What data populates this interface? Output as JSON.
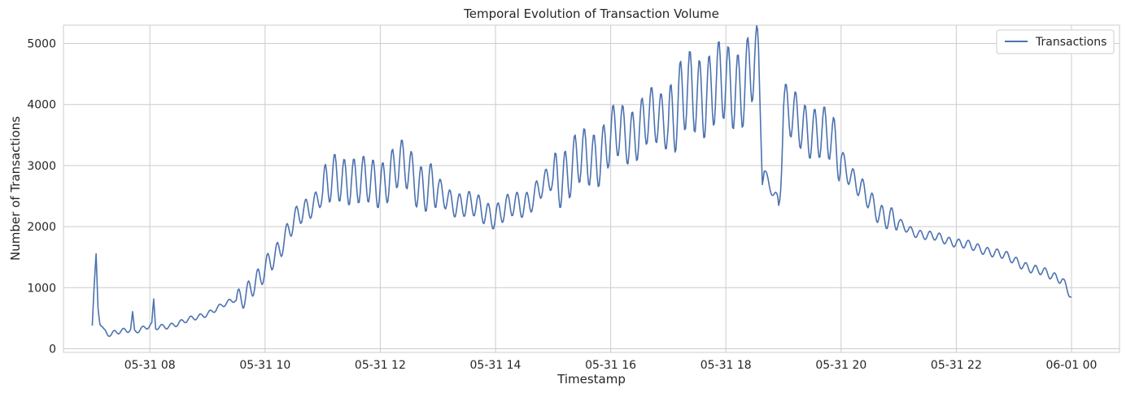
{
  "chart_data": {
    "type": "line",
    "title": "Temporal Evolution of Transaction Volume",
    "xlabel": "Timestamp",
    "ylabel": "Number of Transactions",
    "xlim": [
      "05-31 06:30",
      "06-01 00:50"
    ],
    "ylim": [
      -60,
      5300
    ],
    "grid": true,
    "legend_position": "top-right",
    "x_ticks": [
      "05-31 08",
      "05-31 10",
      "05-31 12",
      "05-31 14",
      "05-31 16",
      "05-31 18",
      "05-31 20",
      "05-31 22",
      "06-01 00"
    ],
    "y_ticks": [
      0,
      1000,
      2000,
      3000,
      4000,
      5000
    ],
    "series": [
      {
        "name": "Transactions",
        "color": "#4c72b0",
        "x": [
          "05-31 07:00",
          "05-31 07:02",
          "05-31 07:04",
          "05-31 07:06",
          "05-31 07:08",
          "05-31 07:12",
          "05-31 07:16",
          "05-31 07:20",
          "05-31 07:24",
          "05-31 07:30",
          "05-31 07:36",
          "05-31 07:40",
          "05-31 07:42",
          "05-31 07:44",
          "05-31 07:50",
          "05-31 07:56",
          "05-31 08:02",
          "05-31 08:04",
          "05-31 08:06",
          "05-31 08:10",
          "05-31 08:20",
          "05-31 08:30",
          "05-31 08:40",
          "05-31 08:50",
          "05-31 09:00",
          "05-31 09:10",
          "05-31 09:20",
          "05-31 09:30",
          "05-31 09:40",
          "05-31 09:50",
          "05-31 09:55",
          "05-31 10:00",
          "05-31 10:05",
          "05-31 10:10",
          "05-31 10:20",
          "05-31 10:30",
          "05-31 10:40",
          "05-31 10:50",
          "05-31 11:00",
          "05-31 11:10",
          "05-31 11:20",
          "05-31 11:30",
          "05-31 11:40",
          "05-31 11:50",
          "05-31 12:00",
          "05-31 12:10",
          "05-31 12:20",
          "05-31 12:30",
          "05-31 12:40",
          "05-31 12:50",
          "05-31 13:00",
          "05-31 13:10",
          "05-31 13:20",
          "05-31 13:30",
          "05-31 13:40",
          "05-31 13:50",
          "05-31 14:00",
          "05-31 14:10",
          "05-31 14:20",
          "05-31 14:30",
          "05-31 14:40",
          "05-31 14:50",
          "05-31 15:00",
          "05-31 15:10",
          "05-31 15:20",
          "05-31 15:30",
          "05-31 15:40",
          "05-31 15:50",
          "05-31 16:00",
          "05-31 16:10",
          "05-31 16:20",
          "05-31 16:30",
          "05-31 16:40",
          "05-31 16:50",
          "05-31 17:00",
          "05-31 17:10",
          "05-31 17:20",
          "05-31 17:30",
          "05-31 17:40",
          "05-31 17:50",
          "05-31 18:00",
          "05-31 18:10",
          "05-31 18:20",
          "05-31 18:30",
          "05-31 18:35",
          "05-31 18:38",
          "05-31 18:40",
          "05-31 18:45",
          "05-31 18:50",
          "05-31 18:55",
          "05-31 19:00",
          "05-31 19:10",
          "05-31 19:20",
          "05-31 19:30",
          "05-31 19:40",
          "05-31 19:50",
          "05-31 20:00",
          "05-31 20:10",
          "05-31 20:20",
          "05-31 20:30",
          "05-31 20:40",
          "05-31 20:50",
          "05-31 21:00",
          "05-31 21:10",
          "05-31 21:20",
          "05-31 21:30",
          "05-31 21:40",
          "05-31 21:50",
          "05-31 22:00",
          "05-31 22:10",
          "05-31 22:20",
          "05-31 22:30",
          "05-31 22:40",
          "05-31 22:50",
          "05-31 23:00",
          "05-31 23:10",
          "05-31 23:20",
          "05-31 23:30",
          "05-31 23:40",
          "05-31 23:50",
          "06-01 00:00"
        ],
        "y": [
          380,
          1000,
          1540,
          700,
          450,
          300,
          250,
          230,
          260,
          280,
          300,
          330,
          580,
          300,
          320,
          350,
          380,
          780,
          340,
          350,
          380,
          420,
          470,
          520,
          580,
          660,
          740,
          820,
          920,
          1060,
          1100,
          1280,
          1450,
          1550,
          1800,
          2050,
          2250,
          2400,
          2550,
          2700,
          2800,
          2850,
          2700,
          2650,
          2750,
          2900,
          2950,
          2900,
          2750,
          2650,
          2550,
          2450,
          2400,
          2350,
          2300,
          2250,
          2200,
          2250,
          2350,
          2400,
          2500,
          2650,
          2800,
          2900,
          2950,
          3050,
          3150,
          3250,
          3400,
          3500,
          3550,
          3650,
          3700,
          3750,
          3850,
          3950,
          4050,
          4200,
          4300,
          4250,
          4200,
          4350,
          4450,
          4600,
          4300,
          2750,
          2900,
          2700,
          2550,
          2450,
          3950,
          3700,
          3650,
          3650,
          3500,
          3350,
          3150,
          2850,
          2600,
          2400,
          2250,
          2150,
          2050,
          1950,
          1900,
          1850,
          1820,
          1780,
          1750,
          1700,
          1650,
          1620,
          1580,
          1520,
          1450,
          1380,
          1300,
          1250,
          1200,
          1150,
          850
        ]
      }
    ],
    "oscillation": {
      "period_minutes": 10,
      "amplitude": [
        {
          "from": "05-31 07:00",
          "to": "05-31 09:30",
          "value": 40
        },
        {
          "from": "05-31 09:30",
          "to": "05-31 11:00",
          "value": 180
        },
        {
          "from": "05-31 11:00",
          "to": "05-31 13:00",
          "value": 380
        },
        {
          "from": "05-31 13:00",
          "to": "05-31 15:00",
          "value": 200
        },
        {
          "from": "05-31 15:00",
          "to": "05-31 17:00",
          "value": 450
        },
        {
          "from": "05-31 17:00",
          "to": "05-31 18:35",
          "value": 650
        },
        {
          "from": "05-31 18:35",
          "to": "05-31 18:55",
          "value": 80
        },
        {
          "from": "05-31 18:55",
          "to": "05-31 20:00",
          "value": 420
        },
        {
          "from": "05-31 20:00",
          "to": "05-31 21:00",
          "value": 180
        },
        {
          "from": "05-31 21:00",
          "to": "06-01 00:00",
          "value": 70
        }
      ]
    }
  }
}
